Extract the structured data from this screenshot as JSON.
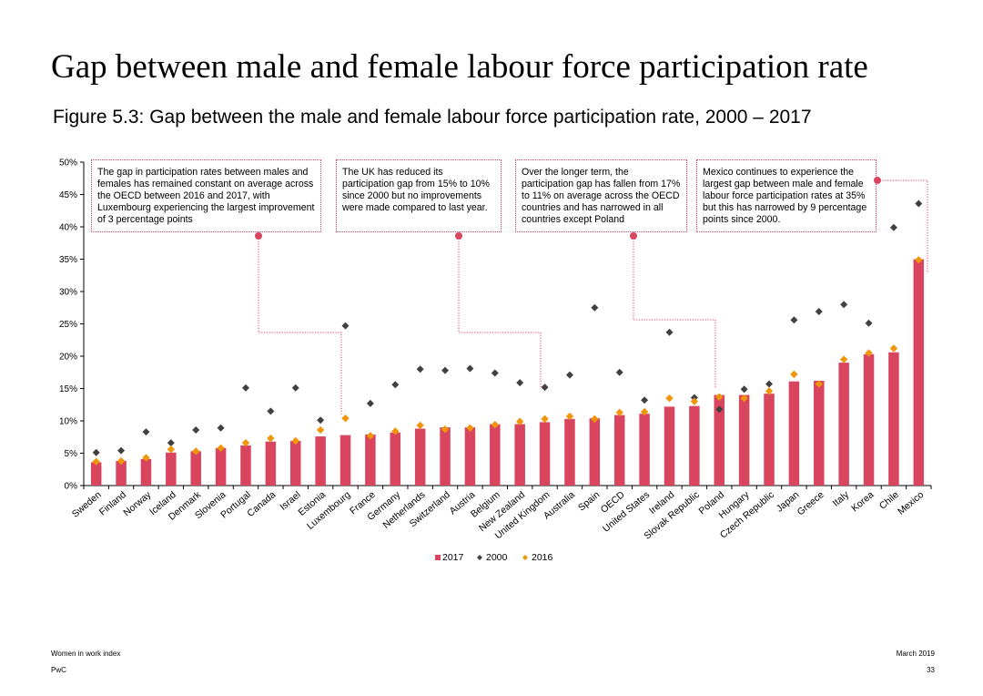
{
  "title": "Gap between male and female labour force participation rate",
  "subtitle": "Figure 5.3: Gap between the male and female labour force participation rate, 2000 – 2017",
  "colors": {
    "bar_2017": "#d9455f",
    "marker_2000": "#404040",
    "marker_2016": "#f0960a",
    "annotation_dot": "#d9455f"
  },
  "annotations": [
    {
      "text": "The gap in participation rates between males and females has remained constant on average across the OECD between 2016 and 2017, with Luxembourg experiencing the largest improvement of 3 percentage points",
      "points_to": "Luxembourg"
    },
    {
      "text": "The UK has reduced its participation gap from 15% to 10% since 2000 but no improvements were made compared to last year.",
      "points_to": "United Kingdom"
    },
    {
      "text": "Over the longer term, the participation gap has fallen from 17% to 11% on average across the OECD countries and has narrowed in all countries except Poland",
      "points_to": "Poland"
    },
    {
      "text": "Mexico continues to experience the largest gap between male and female labour force participation rates at 35% but this has narrowed by 9 percentage points since 2000.",
      "points_to": "Mexico"
    }
  ],
  "chart_data": {
    "type": "bar",
    "categories": [
      "Sweden",
      "Finland",
      "Norway",
      "Iceland",
      "Denmark",
      "Slovenia",
      "Portugal",
      "Canada",
      "Israel",
      "Estonia",
      "Luxembourg",
      "France",
      "Germany",
      "Netherlands",
      "Switzerland",
      "Austria",
      "Belgium",
      "New Zealand",
      "United Kingdom",
      "Australia",
      "Spain",
      "OECD",
      "United States",
      "Ireland",
      "Slovak Republic",
      "Poland",
      "Hungary",
      "Czech Republic",
      "Japan",
      "Greece",
      "Italy",
      "Korea",
      "Chile",
      "Mexico"
    ],
    "series": [
      {
        "name": "2017",
        "kind": "bar",
        "values": [
          3.6,
          3.8,
          4.1,
          5.1,
          5.3,
          5.8,
          6.2,
          6.8,
          6.9,
          7.6,
          7.8,
          7.9,
          8.2,
          8.8,
          9.0,
          9.0,
          9.5,
          9.5,
          9.8,
          10.3,
          10.4,
          10.9,
          11.1,
          12.2,
          12.3,
          14.0,
          14.0,
          14.2,
          16.1,
          16.2,
          19.0,
          20.3,
          20.6,
          35.0
        ]
      },
      {
        "name": "2000",
        "kind": "marker",
        "values": [
          5.1,
          5.4,
          8.3,
          6.6,
          8.6,
          8.9,
          15.1,
          11.5,
          15.1,
          10.1,
          24.7,
          12.7,
          15.6,
          18.0,
          17.8,
          18.1,
          17.4,
          15.9,
          15.2,
          17.1,
          27.5,
          17.5,
          13.2,
          23.7,
          13.6,
          11.8,
          14.9,
          15.7,
          25.6,
          26.9,
          28.0,
          25.1,
          39.9,
          43.6
        ]
      },
      {
        "name": "2016",
        "kind": "marker",
        "values": [
          3.7,
          3.8,
          4.3,
          5.6,
          5.3,
          5.8,
          6.6,
          7.3,
          6.9,
          8.6,
          10.4,
          7.7,
          8.4,
          9.3,
          8.7,
          8.9,
          9.4,
          9.9,
          10.3,
          10.7,
          10.3,
          11.3,
          11.4,
          13.5,
          13.0,
          13.7,
          13.5,
          14.6,
          17.2,
          15.7,
          19.5,
          20.5,
          21.2,
          34.9
        ]
      }
    ],
    "y_ticks": [
      "0%",
      "5%",
      "10%",
      "15%",
      "20%",
      "25%",
      "30%",
      "35%",
      "40%",
      "45%",
      "50%"
    ],
    "ylim": [
      0,
      50
    ],
    "xlabel": "",
    "ylabel": "",
    "legend": {
      "placement": "bottom",
      "items": [
        "2017",
        "2000",
        "2016"
      ]
    },
    "grid": false
  },
  "footer": {
    "left_top": "Women in work index",
    "left_bottom": "PwC",
    "right_top": "March 2019",
    "right_bottom": "33"
  }
}
